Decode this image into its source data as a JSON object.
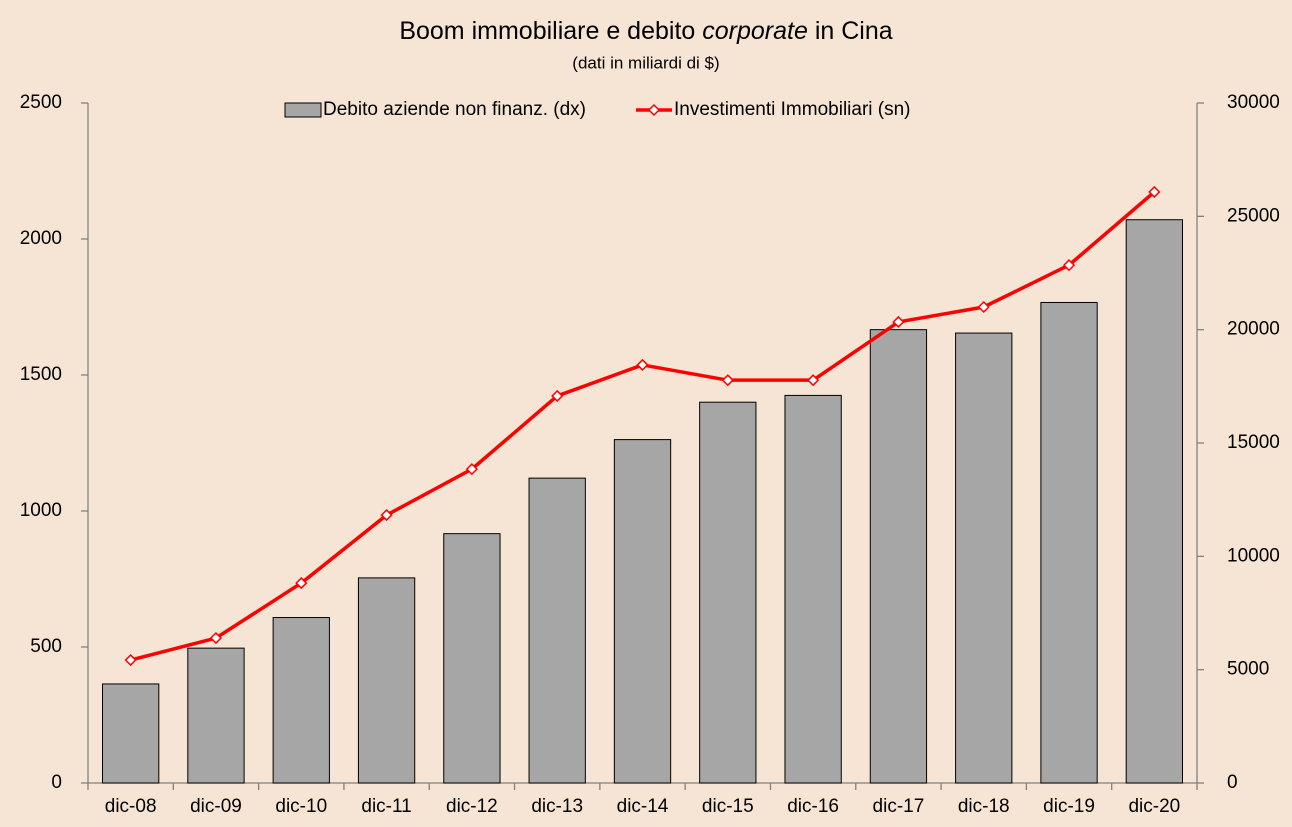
{
  "chart_data": {
    "type": "bar-line",
    "title": [
      "Boom immobiliare e debito",
      "corporate",
      "in Cina"
    ],
    "subtitle": "(dati in miliardi di $)",
    "categories": [
      "dic-08",
      "dic-09",
      "dic-10",
      "dic-11",
      "dic-12",
      "dic-13",
      "dic-14",
      "dic-15",
      "dic-16",
      "dic-17",
      "dic-18",
      "dic-19",
      "dic-20"
    ],
    "series": [
      {
        "name": "Debito aziende non finanz. (dx)",
        "type": "bar",
        "axis": "y2",
        "color": "#a6a6a6",
        "values": [
          4370,
          5950,
          7300,
          9050,
          11000,
          13450,
          15150,
          16800,
          17100,
          20000,
          19850,
          21200,
          24850
        ]
      },
      {
        "name": "Investimenti Immobiliari (sn)",
        "type": "line",
        "axis": "y",
        "color": "#ff0000",
        "values": [
          452,
          533,
          735,
          985,
          1154,
          1423,
          1537,
          1481,
          1481,
          1695,
          1750,
          1904,
          2173
        ]
      }
    ],
    "ylim": [
      0,
      2500
    ],
    "yticks": [
      0,
      500,
      1000,
      1500,
      2000,
      2500
    ],
    "y2lim": [
      0,
      30000
    ],
    "y2ticks": [
      0,
      5000,
      10000,
      15000,
      20000,
      25000,
      30000
    ],
    "grid": false,
    "legend": "top"
  }
}
